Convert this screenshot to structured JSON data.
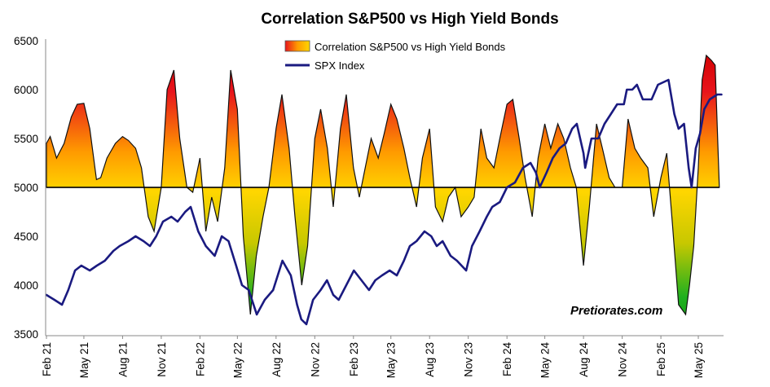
{
  "chart_data": {
    "type": "area",
    "title": "Correlation S&P500 vs High Yield Bonds",
    "watermark": "Pretiorates.com",
    "ylim": [
      3500,
      6500
    ],
    "yticks": [
      3500,
      4000,
      4500,
      5000,
      5500,
      6000,
      6500
    ],
    "baseline": 5000,
    "xlim": [
      "2021-02-01",
      "2025-06-30"
    ],
    "xticks": [
      {
        "label": "Feb 21",
        "date": "2021-02-01"
      },
      {
        "label": "May 21",
        "date": "2021-05-01"
      },
      {
        "label": "Aug 21",
        "date": "2021-08-01"
      },
      {
        "label": "Nov 21",
        "date": "2021-11-01"
      },
      {
        "label": "Feb 22",
        "date": "2022-02-01"
      },
      {
        "label": "May 22",
        "date": "2022-05-01"
      },
      {
        "label": "Aug 22",
        "date": "2022-08-01"
      },
      {
        "label": "Nov 22",
        "date": "2022-11-01"
      },
      {
        "label": "Feb 23",
        "date": "2023-02-01"
      },
      {
        "label": "May 23",
        "date": "2023-05-01"
      },
      {
        "label": "Aug 23",
        "date": "2023-08-01"
      },
      {
        "label": "Nov 23",
        "date": "2023-11-01"
      },
      {
        "label": "Feb 24",
        "date": "2024-02-01"
      },
      {
        "label": "May 24",
        "date": "2024-05-01"
      },
      {
        "label": "Aug 24",
        "date": "2024-08-01"
      },
      {
        "label": "Nov 24",
        "date": "2024-11-01"
      },
      {
        "label": "Feb 25",
        "date": "2025-02-01"
      },
      {
        "label": "May 25",
        "date": "2025-05-01"
      }
    ],
    "legend": {
      "position": "top-center"
    },
    "grid": false,
    "series": [
      {
        "name": "Correlation S&P500 vs High Yield Bonds",
        "kind": "area",
        "colors": {
          "high": "#e8141c",
          "mid": "#ff9a00",
          "zero": "#ffd600",
          "low_mid": "#c8c800",
          "low": "#1fb01f"
        },
        "x": [
          "2021-02-01",
          "2021-02-10",
          "2021-02-25",
          "2021-03-15",
          "2021-04-01",
          "2021-04-15",
          "2021-05-01",
          "2021-05-15",
          "2021-05-31",
          "2021-06-10",
          "2021-06-25",
          "2021-07-15",
          "2021-08-01",
          "2021-08-15",
          "2021-09-01",
          "2021-09-15",
          "2021-10-01",
          "2021-10-15",
          "2021-11-01",
          "2021-11-15",
          "2021-12-01",
          "2021-12-15",
          "2022-01-01",
          "2022-01-15",
          "2022-02-01",
          "2022-02-15",
          "2022-03-01",
          "2022-03-15",
          "2022-04-01",
          "2022-04-15",
          "2022-05-01",
          "2022-05-15",
          "2022-06-01",
          "2022-06-15",
          "2022-07-01",
          "2022-07-15",
          "2022-08-01",
          "2022-08-15",
          "2022-09-01",
          "2022-09-15",
          "2022-10-01",
          "2022-10-15",
          "2022-11-01",
          "2022-11-15",
          "2022-12-01",
          "2022-12-15",
          "2023-01-01",
          "2023-01-15",
          "2023-02-01",
          "2023-02-15",
          "2023-03-01",
          "2023-03-15",
          "2023-04-01",
          "2023-04-15",
          "2023-05-01",
          "2023-05-15",
          "2023-06-01",
          "2023-06-15",
          "2023-07-01",
          "2023-07-15",
          "2023-08-01",
          "2023-08-15",
          "2023-09-01",
          "2023-09-15",
          "2023-10-01",
          "2023-10-15",
          "2023-11-01",
          "2023-11-15",
          "2023-12-01",
          "2023-12-15",
          "2024-01-01",
          "2024-01-15",
          "2024-02-01",
          "2024-02-15",
          "2024-03-01",
          "2024-03-15",
          "2024-04-01",
          "2024-04-15",
          "2024-05-01",
          "2024-05-15",
          "2024-06-01",
          "2024-06-15",
          "2024-07-01",
          "2024-07-15",
          "2024-08-01",
          "2024-08-15",
          "2024-09-01",
          "2024-09-15",
          "2024-10-01",
          "2024-10-15",
          "2024-11-01",
          "2024-11-15",
          "2024-12-01",
          "2024-12-15",
          "2025-01-01",
          "2025-01-15",
          "2025-02-01",
          "2025-02-15",
          "2025-03-01",
          "2025-03-15",
          "2025-04-01",
          "2025-04-10",
          "2025-04-20",
          "2025-05-01",
          "2025-05-10",
          "2025-05-20",
          "2025-06-01",
          "2025-06-10",
          "2025-06-20"
        ],
        "values": [
          5450,
          5520,
          5300,
          5450,
          5720,
          5850,
          5860,
          5600,
          5080,
          5100,
          5300,
          5450,
          5520,
          5480,
          5400,
          5200,
          4700,
          4550,
          5000,
          6000,
          6200,
          5500,
          5000,
          4950,
          5300,
          4550,
          4900,
          4650,
          5200,
          6200,
          5800,
          4500,
          3700,
          4300,
          4700,
          5000,
          5600,
          5950,
          5400,
          4700,
          4000,
          4400,
          5500,
          5800,
          5400,
          4800,
          5600,
          5950,
          5200,
          4900,
          5200,
          5500,
          5300,
          5550,
          5850,
          5700,
          5400,
          5100,
          4800,
          5300,
          5600,
          4800,
          4650,
          4900,
          5000,
          4700,
          4800,
          4900,
          5600,
          5300,
          5200,
          5500,
          5850,
          5900,
          5500,
          5100,
          4700,
          5300,
          5650,
          5400,
          5650,
          5500,
          5200,
          5000,
          4200,
          4800,
          5650,
          5400,
          5100,
          5000,
          5000,
          5700,
          5400,
          5300,
          5200,
          4700,
          5100,
          5350,
          4600,
          3800,
          3700,
          4000,
          4400,
          5200,
          6100,
          6350,
          6300,
          6250,
          5000
        ]
      },
      {
        "name": "SPX Index",
        "kind": "line",
        "color": "#1a1a80",
        "x": [
          "2021-02-01",
          "2021-02-20",
          "2021-03-10",
          "2021-03-25",
          "2021-04-10",
          "2021-04-25",
          "2021-05-15",
          "2021-06-01",
          "2021-06-20",
          "2021-07-10",
          "2021-07-25",
          "2021-08-15",
          "2021-09-01",
          "2021-09-20",
          "2021-10-05",
          "2021-10-20",
          "2021-11-05",
          "2021-11-25",
          "2021-12-10",
          "2021-12-28",
          "2022-01-10",
          "2022-01-28",
          "2022-02-15",
          "2022-03-08",
          "2022-03-25",
          "2022-04-10",
          "2022-04-28",
          "2022-05-12",
          "2022-05-28",
          "2022-06-16",
          "2022-07-05",
          "2022-07-25",
          "2022-08-16",
          "2022-09-05",
          "2022-09-20",
          "2022-09-30",
          "2022-10-12",
          "2022-10-28",
          "2022-11-15",
          "2022-11-30",
          "2022-12-15",
          "2022-12-28",
          "2023-01-15",
          "2023-02-02",
          "2023-02-20",
          "2023-03-10",
          "2023-03-25",
          "2023-04-10",
          "2023-04-28",
          "2023-05-15",
          "2023-06-01",
          "2023-06-15",
          "2023-07-01",
          "2023-07-20",
          "2023-08-05",
          "2023-08-18",
          "2023-09-01",
          "2023-09-20",
          "2023-10-05",
          "2023-10-27",
          "2023-11-10",
          "2023-11-28",
          "2023-12-15",
          "2023-12-28",
          "2024-01-15",
          "2024-02-01",
          "2024-02-20",
          "2024-03-10",
          "2024-03-28",
          "2024-04-10",
          "2024-04-19",
          "2024-05-05",
          "2024-05-20",
          "2024-06-05",
          "2024-06-20",
          "2024-07-05",
          "2024-07-16",
          "2024-08-01",
          "2024-08-05",
          "2024-08-20",
          "2024-09-05",
          "2024-09-20",
          "2024-10-05",
          "2024-10-20",
          "2024-11-05",
          "2024-11-12",
          "2024-11-25",
          "2024-12-06",
          "2024-12-20",
          "2025-01-10",
          "2025-01-25",
          "2025-02-19",
          "2025-03-05",
          "2025-03-15",
          "2025-03-28",
          "2025-04-08",
          "2025-04-15",
          "2025-04-25",
          "2025-05-05",
          "2025-05-15",
          "2025-05-28",
          "2025-06-15",
          "2025-06-25"
        ],
        "values": [
          3900,
          3850,
          3800,
          3950,
          4150,
          4200,
          4150,
          4200,
          4250,
          4350,
          4400,
          4450,
          4500,
          4450,
          4400,
          4500,
          4650,
          4700,
          4650,
          4750,
          4800,
          4550,
          4400,
          4300,
          4500,
          4450,
          4200,
          4000,
          3950,
          3700,
          3850,
          3950,
          4250,
          4100,
          3800,
          3650,
          3600,
          3850,
          3950,
          4050,
          3900,
          3850,
          4000,
          4150,
          4050,
          3950,
          4050,
          4100,
          4150,
          4100,
          4250,
          4400,
          4450,
          4550,
          4500,
          4400,
          4450,
          4300,
          4250,
          4150,
          4400,
          4550,
          4700,
          4800,
          4850,
          5000,
          5050,
          5200,
          5250,
          5150,
          5000,
          5150,
          5300,
          5400,
          5450,
          5600,
          5650,
          5350,
          5200,
          5500,
          5500,
          5650,
          5750,
          5850,
          5850,
          6000,
          6000,
          6050,
          5900,
          5900,
          6050,
          6100,
          5750,
          5600,
          5650,
          5200,
          5000,
          5400,
          5550,
          5800,
          5900,
          5950,
          5950
        ]
      }
    ]
  }
}
